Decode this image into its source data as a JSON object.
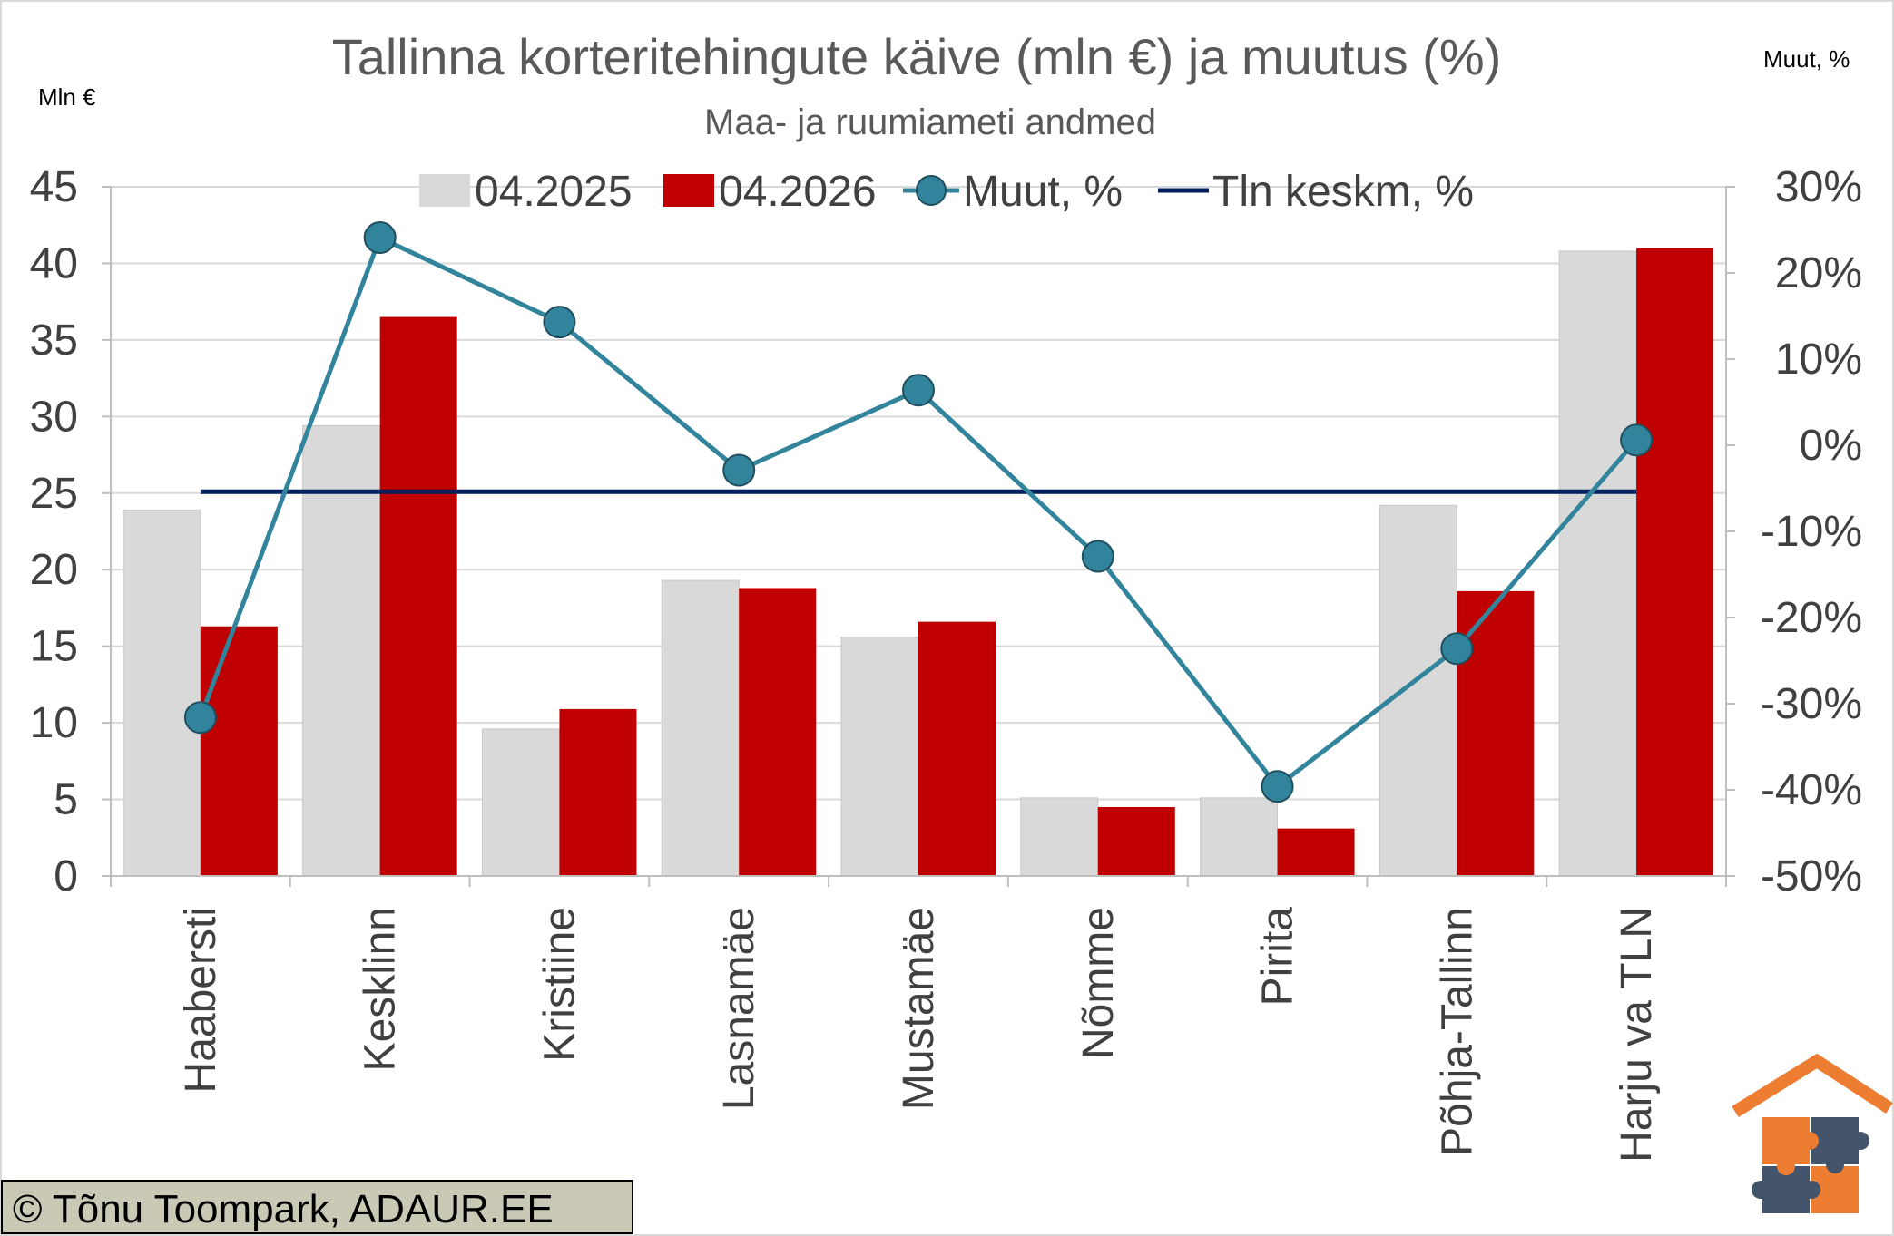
{
  "chart_data": {
    "type": "bar",
    "title": "Tallinna korteritehingute käive (mln €) ja muutus (%)",
    "subtitle": "Maa- ja ruumiameti andmed",
    "ylabel": "Mln €",
    "y2label": "Muut, %",
    "categories": [
      "Haabersti",
      "Kesklinn",
      "Kristiine",
      "Lasnamäe",
      "Mustamäe",
      "Nõmme",
      "Pirita",
      "Põhja-Tallinn",
      "Harju va TLN"
    ],
    "series": [
      {
        "name": "04.2025",
        "type": "bar",
        "axis": "left",
        "color": "#d9d9d9",
        "values": [
          23.9,
          29.4,
          9.6,
          19.3,
          15.6,
          5.1,
          5.1,
          24.2,
          40.8
        ]
      },
      {
        "name": "04.2026",
        "type": "bar",
        "axis": "left",
        "color": "#c00000",
        "values": [
          16.3,
          36.5,
          10.9,
          18.8,
          16.6,
          4.5,
          3.1,
          18.6,
          41.0
        ]
      },
      {
        "name": "Muut, %",
        "type": "line-markers",
        "axis": "right",
        "color": "#31849b",
        "values": [
          -31.6,
          24.1,
          14.3,
          -2.9,
          6.4,
          -12.9,
          -39.6,
          -23.6,
          0.6
        ]
      },
      {
        "name": "Tln keskm, %",
        "type": "line",
        "axis": "right",
        "color": "#002060",
        "values": [
          -5.4,
          -5.4,
          -5.4,
          -5.4,
          -5.4,
          -5.4,
          -5.4,
          -5.4,
          -5.4
        ]
      }
    ],
    "ylim": [
      0,
      45
    ],
    "yticks": [
      "0",
      "5",
      "10",
      "15",
      "20",
      "25",
      "30",
      "35",
      "40",
      "45"
    ],
    "y2lim": [
      -50,
      30
    ],
    "y2ticks": [
      "-50%",
      "-40%",
      "-30%",
      "-20%",
      "-10%",
      "0%",
      "10%",
      "20%",
      "30%"
    ],
    "grid": "horizontal",
    "legend_position": "top"
  },
  "credit": "© Tõnu Toompark, ADAUR.EE",
  "colors": {
    "text": "#595959",
    "grid": "#d9d9d9",
    "logo_roof": "#ed7d31",
    "logo_blue": "#44546a",
    "logo_orange": "#ed7d31"
  }
}
